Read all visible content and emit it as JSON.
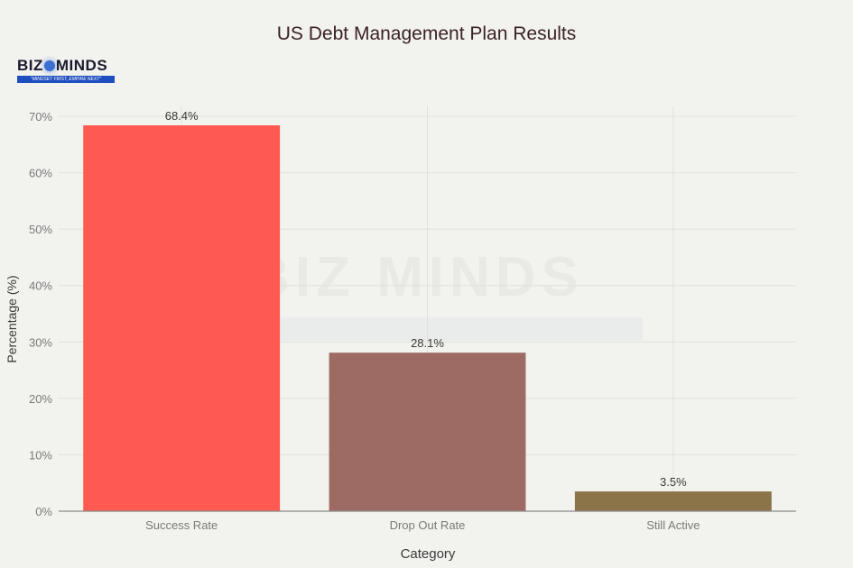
{
  "title": "US Debt Management Plan Results",
  "logo": {
    "word_left": "BIZ",
    "word_right": "MINDS",
    "tagline": "\"MINDSET FIRST, EMPIRE NEXT\""
  },
  "watermark": {
    "text": "BIZ MINDS"
  },
  "axes": {
    "xlabel": "Category",
    "ylabel": "Percentage (%)"
  },
  "colors": {
    "background": "#f2f2ee",
    "title": "#3b2226",
    "grid": "#e0e0dc",
    "axis_line": "#8a8a8a",
    "tick_text": "#7a7a7a",
    "bar_label_text": "#3a3a3a"
  },
  "chart_data": {
    "type": "bar",
    "title": "US Debt Management Plan Results",
    "xlabel": "Category",
    "ylabel": "Percentage (%)",
    "categories": [
      "Success Rate",
      "Drop Out Rate",
      "Still Active"
    ],
    "values": [
      68.4,
      28.1,
      3.5
    ],
    "data_labels": [
      "68.4%",
      "28.1%",
      "3.5%"
    ],
    "bar_colors": [
      "#ff5a52",
      "#9d6b63",
      "#8a7448"
    ],
    "ylim": [
      0,
      70
    ],
    "yticks": [
      0,
      10,
      20,
      30,
      40,
      50,
      60,
      70
    ],
    "ytick_labels": [
      "0%",
      "10%",
      "20%",
      "30%",
      "40%",
      "50%",
      "60%",
      "70%"
    ],
    "grid": true,
    "legend": false
  }
}
